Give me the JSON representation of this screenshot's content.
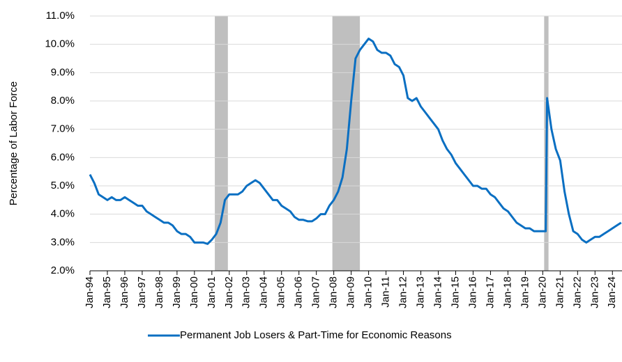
{
  "chart_data": {
    "type": "line",
    "y_label": "Percentage of Labor Force",
    "x": [
      1994,
      1994.25,
      1994.5,
      1994.75,
      1995,
      1995.25,
      1995.5,
      1995.75,
      1996,
      1996.25,
      1996.5,
      1996.75,
      1997,
      1997.25,
      1997.5,
      1997.75,
      1998,
      1998.25,
      1998.5,
      1998.75,
      1999,
      1999.25,
      1999.5,
      1999.75,
      2000,
      2000.25,
      2000.5,
      2000.75,
      2001,
      2001.25,
      2001.5,
      2001.75,
      2002,
      2002.25,
      2002.5,
      2002.75,
      2003,
      2003.25,
      2003.5,
      2003.75,
      2004,
      2004.25,
      2004.5,
      2004.75,
      2005,
      2005.25,
      2005.5,
      2005.75,
      2006,
      2006.25,
      2006.5,
      2006.75,
      2007,
      2007.25,
      2007.5,
      2007.75,
      2008,
      2008.25,
      2008.5,
      2008.75,
      2009,
      2009.25,
      2009.5,
      2009.75,
      2010,
      2010.25,
      2010.5,
      2010.75,
      2011,
      2011.25,
      2011.5,
      2011.75,
      2012,
      2012.25,
      2012.5,
      2012.75,
      2013,
      2013.25,
      2013.5,
      2013.75,
      2014,
      2014.25,
      2014.5,
      2014.75,
      2015,
      2015.25,
      2015.5,
      2015.75,
      2016,
      2016.25,
      2016.5,
      2016.75,
      2017,
      2017.25,
      2017.5,
      2017.75,
      2018,
      2018.25,
      2018.5,
      2018.75,
      2019,
      2019.25,
      2019.5,
      2019.75,
      2020,
      2020.17,
      2020.25,
      2020.5,
      2020.75,
      2021,
      2021.25,
      2021.5,
      2021.75,
      2022,
      2022.25,
      2022.5,
      2022.75,
      2023,
      2023.25,
      2023.5,
      2023.75,
      2024,
      2024.25,
      2024.5
    ],
    "series": [
      {
        "name": "Permanent Job Losers & Part-Time for Economic Reasons",
        "color": "#0a6fc2",
        "values": [
          5.4,
          5.1,
          4.7,
          4.6,
          4.5,
          4.6,
          4.5,
          4.5,
          4.6,
          4.5,
          4.4,
          4.3,
          4.3,
          4.1,
          4.0,
          3.9,
          3.8,
          3.7,
          3.7,
          3.6,
          3.4,
          3.3,
          3.3,
          3.2,
          3.0,
          3.0,
          3.0,
          2.95,
          3.1,
          3.3,
          3.7,
          4.5,
          4.7,
          4.7,
          4.7,
          4.8,
          5.0,
          5.1,
          5.2,
          5.1,
          4.9,
          4.7,
          4.5,
          4.5,
          4.3,
          4.2,
          4.1,
          3.9,
          3.8,
          3.8,
          3.75,
          3.75,
          3.85,
          4.0,
          4.0,
          4.3,
          4.5,
          4.8,
          5.3,
          6.3,
          8.0,
          9.5,
          9.8,
          10.0,
          10.2,
          10.1,
          9.8,
          9.7,
          9.7,
          9.6,
          9.3,
          9.2,
          8.9,
          8.1,
          8.0,
          8.1,
          7.8,
          7.6,
          7.4,
          7.2,
          7.0,
          6.6,
          6.3,
          6.1,
          5.8,
          5.6,
          5.4,
          5.2,
          5.0,
          5.0,
          4.9,
          4.9,
          4.7,
          4.6,
          4.4,
          4.2,
          4.1,
          3.9,
          3.7,
          3.6,
          3.5,
          3.5,
          3.4,
          3.4,
          3.4,
          3.4,
          8.1,
          7.0,
          6.3,
          5.9,
          4.8,
          4.0,
          3.4,
          3.3,
          3.1,
          3.0,
          3.1,
          3.2,
          3.2,
          3.3,
          3.4,
          3.5,
          3.6,
          3.7
        ]
      }
    ],
    "recessions": [
      [
        2001.17,
        2001.92
      ],
      [
        2007.92,
        2009.5
      ],
      [
        2020.08,
        2020.33
      ]
    ],
    "recession_color": "#bfbfbf",
    "xlim": [
      1994,
      2024.55
    ],
    "xticks": [
      {
        "value": 1994,
        "label": "Jan-94"
      },
      {
        "value": 1995,
        "label": "Jan-95"
      },
      {
        "value": 1996,
        "label": "Jan-96"
      },
      {
        "value": 1997,
        "label": "Jan-97"
      },
      {
        "value": 1998,
        "label": "Jan-98"
      },
      {
        "value": 1999,
        "label": "Jan-99"
      },
      {
        "value": 2000,
        "label": "Jan-00"
      },
      {
        "value": 2001,
        "label": "Jan-01"
      },
      {
        "value": 2002,
        "label": "Jan-02"
      },
      {
        "value": 2003,
        "label": "Jan-03"
      },
      {
        "value": 2004,
        "label": "Jan-04"
      },
      {
        "value": 2005,
        "label": "Jan-05"
      },
      {
        "value": 2006,
        "label": "Jan-06"
      },
      {
        "value": 2007,
        "label": "Jan-07"
      },
      {
        "value": 2008,
        "label": "Jan-08"
      },
      {
        "value": 2009,
        "label": "Jan-09"
      },
      {
        "value": 2010,
        "label": "Jan-10"
      },
      {
        "value": 2011,
        "label": "Jan-11"
      },
      {
        "value": 2012,
        "label": "Jan-12"
      },
      {
        "value": 2013,
        "label": "Jan-13"
      },
      {
        "value": 2014,
        "label": "Jan-14"
      },
      {
        "value": 2015,
        "label": "Jan-15"
      },
      {
        "value": 2016,
        "label": "Jan-16"
      },
      {
        "value": 2017,
        "label": "Jan-17"
      },
      {
        "value": 2018,
        "label": "Jan-18"
      },
      {
        "value": 2019,
        "label": "Jan-19"
      },
      {
        "value": 2020,
        "label": "Jan-20"
      },
      {
        "value": 2021,
        "label": "Jan-21"
      },
      {
        "value": 2022,
        "label": "Jan-22"
      },
      {
        "value": 2023,
        "label": "Jan-23"
      },
      {
        "value": 2024,
        "label": "Jan-24"
      }
    ],
    "ylim": [
      2,
      11
    ],
    "yticks": [
      {
        "value": 2,
        "label": "2.0%"
      },
      {
        "value": 3,
        "label": "3.0%"
      },
      {
        "value": 4,
        "label": "4.0%"
      },
      {
        "value": 5,
        "label": "5.0%"
      },
      {
        "value": 6,
        "label": "6.0%"
      },
      {
        "value": 7,
        "label": "7.0%"
      },
      {
        "value": 8,
        "label": "8.0%"
      },
      {
        "value": 9,
        "label": "9.0%"
      },
      {
        "value": 10,
        "label": "10.0%"
      },
      {
        "value": 11,
        "label": "11.0%"
      }
    ],
    "grid": true
  }
}
